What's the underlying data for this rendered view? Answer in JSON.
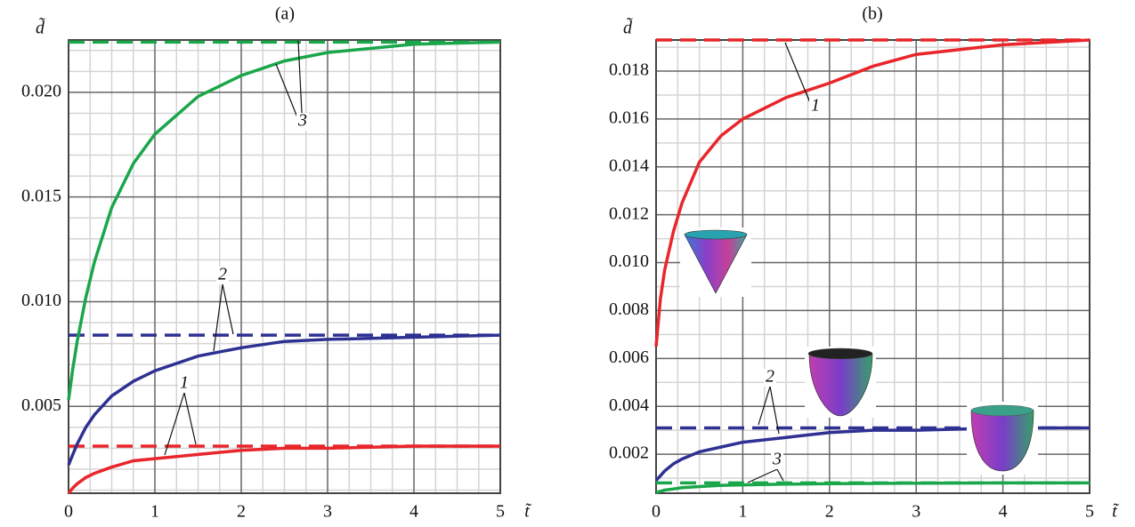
{
  "chart_data": [
    {
      "type": "line",
      "title": "(a)",
      "x_label": "t̃",
      "y_label": "d̃",
      "x": [
        0,
        0.05,
        0.1,
        0.2,
        0.3,
        0.5,
        0.75,
        1,
        1.5,
        2,
        2.5,
        3,
        4,
        5
      ],
      "xlim": [
        0,
        5
      ],
      "xticks": [
        0,
        1,
        2,
        3,
        4,
        5
      ],
      "ylim": [
        0.00085,
        0.0225
      ],
      "yticks": [
        0.005,
        {
          "value": 0.01,
          "label": "0.010"
        },
        0.015,
        {
          "value": 0.02,
          "label": "0.020"
        }
      ],
      "grid": true,
      "series": [
        {
          "name": "1",
          "color": "#e8262b",
          "asymptote": 0.0031,
          "values": [
            0.00085,
            0.0011,
            0.0013,
            0.0016,
            0.0018,
            0.0021,
            0.0024,
            0.0025,
            0.0027,
            0.0029,
            0.003,
            0.003,
            0.0031,
            0.0031
          ]
        },
        {
          "name": "2",
          "color": "#2e3192",
          "asymptote": 0.0084,
          "values": [
            0.0022,
            0.0027,
            0.0032,
            0.004,
            0.0046,
            0.0055,
            0.0062,
            0.0067,
            0.0074,
            0.0078,
            0.0081,
            0.0082,
            0.0083,
            0.0084
          ]
        },
        {
          "name": "3",
          "color": "#1aa64a",
          "asymptote": 0.0224,
          "values": [
            0.0053,
            0.0068,
            0.0081,
            0.0102,
            0.0119,
            0.0145,
            0.0166,
            0.018,
            0.0198,
            0.0208,
            0.0215,
            0.0219,
            0.0223,
            0.0224
          ]
        }
      ]
    },
    {
      "type": "line",
      "title": "(b)",
      "x_label": "t̃",
      "y_label": "d̃",
      "x": [
        0,
        0.05,
        0.1,
        0.2,
        0.3,
        0.5,
        0.75,
        1,
        1.5,
        2,
        2.5,
        3,
        4,
        5
      ],
      "xlim": [
        0,
        5
      ],
      "xticks": [
        0,
        1,
        2,
        3,
        4,
        5
      ],
      "ylim": [
        0.00037,
        0.0193
      ],
      "yticks": [
        0.002,
        0.004,
        0.006,
        0.008,
        {
          "value": 0.01,
          "label": "0.010"
        },
        0.012,
        0.014,
        0.016,
        0.018
      ],
      "grid": true,
      "series": [
        {
          "name": "1",
          "color": "#e8262b",
          "asymptote": 0.0193,
          "values": [
            0.0065,
            0.0085,
            0.0097,
            0.0113,
            0.0125,
            0.0142,
            0.0153,
            0.016,
            0.0169,
            0.0175,
            0.0182,
            0.0187,
            0.0191,
            0.0193
          ]
        },
        {
          "name": "2",
          "color": "#2e3192",
          "asymptote": 0.0031,
          "values": [
            0.0009,
            0.0011,
            0.0013,
            0.0016,
            0.0018,
            0.0021,
            0.0023,
            0.0025,
            0.0027,
            0.0029,
            0.003,
            0.003,
            0.0031,
            0.0031
          ]
        },
        {
          "name": "3",
          "color": "#1aa64a",
          "asymptote": 0.0008,
          "values": [
            0.0004,
            0.00045,
            0.0005,
            0.00055,
            0.0006,
            0.00065,
            0.0007,
            0.00072,
            0.00075,
            0.00077,
            0.00078,
            0.00079,
            0.0008,
            0.0008
          ]
        }
      ]
    }
  ]
}
